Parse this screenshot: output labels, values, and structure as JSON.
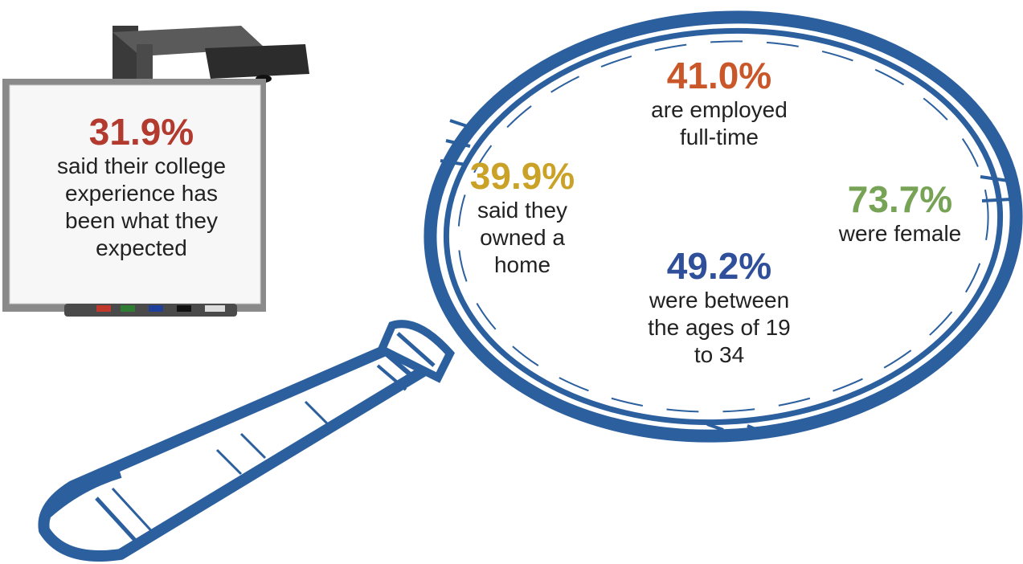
{
  "stats": [
    {
      "id": "college",
      "percent": "31.9%",
      "text": "said their college experience has been what they expected",
      "lines": [
        "said their college",
        "experience has",
        "been what they",
        "expected"
      ]
    },
    {
      "id": "employed",
      "percent": "41.0%",
      "text": "are employed full-time",
      "lines": [
        "are employed",
        "full-time"
      ]
    },
    {
      "id": "home",
      "percent": "39.9%",
      "text": "said they owned a home",
      "lines": [
        "said they",
        "owned a",
        "home"
      ]
    },
    {
      "id": "female",
      "percent": "73.7%",
      "text": "were female",
      "lines": [
        "were female"
      ]
    },
    {
      "id": "ages",
      "percent": "49.2%",
      "text": "were between the ages of 19 to 34",
      "lines": [
        "were between",
        "the ages of 19",
        "to 34"
      ]
    }
  ],
  "colors": {
    "college": "#b23a2e",
    "employed": "#c9572a",
    "home": "#c9a227",
    "female": "#77a356",
    "ages": "#2f4f9a",
    "magnifier": "#2b5f9e"
  },
  "icons": [
    "magnifying-glass-illustration",
    "smartboard-projector-illustration"
  ]
}
